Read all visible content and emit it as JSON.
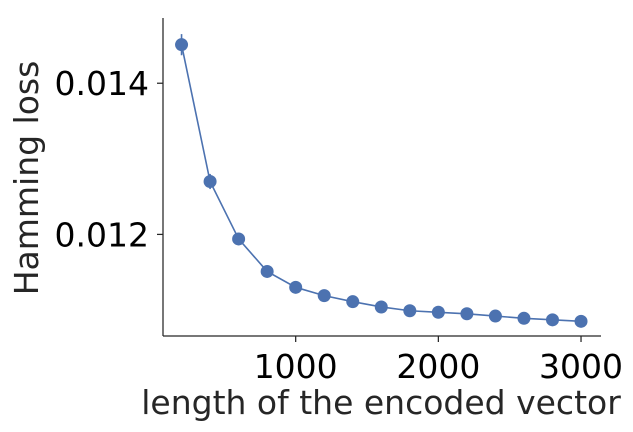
{
  "chart_data": {
    "type": "line",
    "title": "",
    "xlabel": "length of the encoded vector",
    "ylabel": "Hamming loss",
    "x": [
      200,
      400,
      600,
      800,
      1000,
      1200,
      1400,
      1600,
      1800,
      2000,
      2200,
      2400,
      2600,
      2800,
      3000
    ],
    "series": [
      {
        "values": [
          0.01451,
          0.0127,
          0.01194,
          0.01151,
          0.0113,
          0.01119,
          0.01111,
          0.01104,
          0.01099,
          0.01097,
          0.01095,
          0.01092,
          0.01089,
          0.01087,
          0.01085
        ],
        "error": [
          0.00014,
          0.0001,
          5e-05,
          4e-05,
          3e-05,
          3e-05,
          3e-05,
          3e-05,
          3e-05,
          3e-05,
          3e-05,
          3e-05,
          3e-05,
          3e-05,
          3e-05
        ],
        "color": "#4c72b0"
      }
    ],
    "xticks": [
      1000,
      2000,
      3000
    ],
    "xtick_labels": [
      "1000",
      "2000",
      "3000"
    ],
    "yticks": [
      0.012,
      0.014
    ],
    "ytick_labels": [
      "0.012",
      "0.014"
    ],
    "xlim": [
      70,
      3140
    ],
    "ylim": [
      0.010656,
      0.014863
    ],
    "grid": false,
    "legend": "none",
    "axis_color": "#262626"
  }
}
